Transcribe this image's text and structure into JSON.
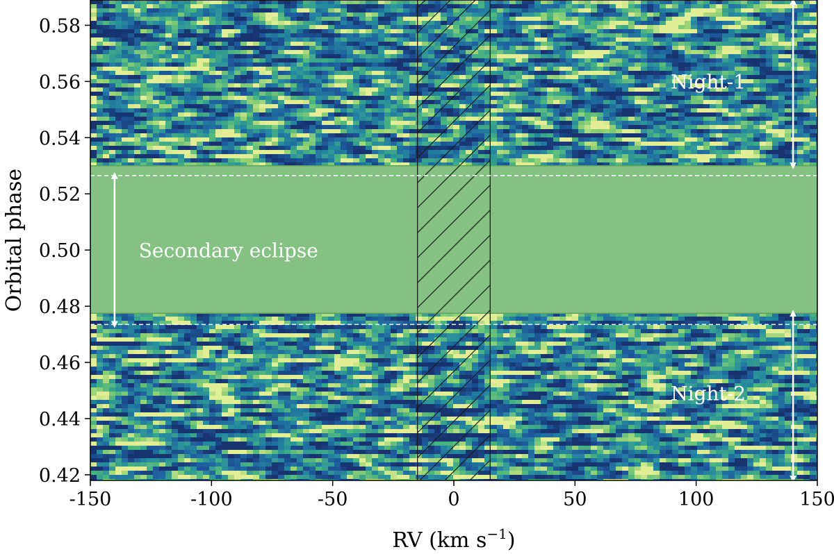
{
  "chart_data": {
    "type": "heatmap",
    "title": "",
    "xlabel": "RV (km s⁻¹)",
    "xlabel_main": "RV (km s",
    "xlabel_sup": "−1",
    "xlabel_close": ")",
    "ylabel": "Orbital phase",
    "xlim": [
      -150,
      150
    ],
    "ylim": [
      0.418,
      0.589
    ],
    "x_ticks": [
      -150,
      -100,
      -50,
      0,
      50,
      100,
      150
    ],
    "x_tick_labels": [
      "-150",
      "-100",
      "-50",
      "0",
      "50",
      "100",
      "150"
    ],
    "y_ticks": [
      0.42,
      0.44,
      0.46,
      0.48,
      0.5,
      0.52,
      0.54,
      0.56,
      0.58
    ],
    "y_tick_labels": [
      "0.42",
      "0.44",
      "0.46",
      "0.48",
      "0.50",
      "0.52",
      "0.54",
      "0.56",
      "0.58"
    ],
    "colormap": "viridis-like (blue-green-yellow)",
    "night1": {
      "label": "Night-1",
      "phase_range": [
        0.53,
        0.589
      ],
      "arrow_x": 140
    },
    "night2": {
      "label": "Night-2",
      "phase_range": [
        0.418,
        0.4775
      ],
      "arrow_x": 140
    },
    "secondary_eclipse": {
      "label": "Secondary eclipse",
      "fill_range": [
        0.4775,
        0.53
      ],
      "contact_lines": [
        0.4735,
        0.5265
      ],
      "arrow_x": -140,
      "color": "#84c182"
    },
    "hatched_band": {
      "rv_range": [
        -15,
        15
      ]
    },
    "dashed_line_color": "#ffffff",
    "annotation_color": "#ffffff"
  }
}
